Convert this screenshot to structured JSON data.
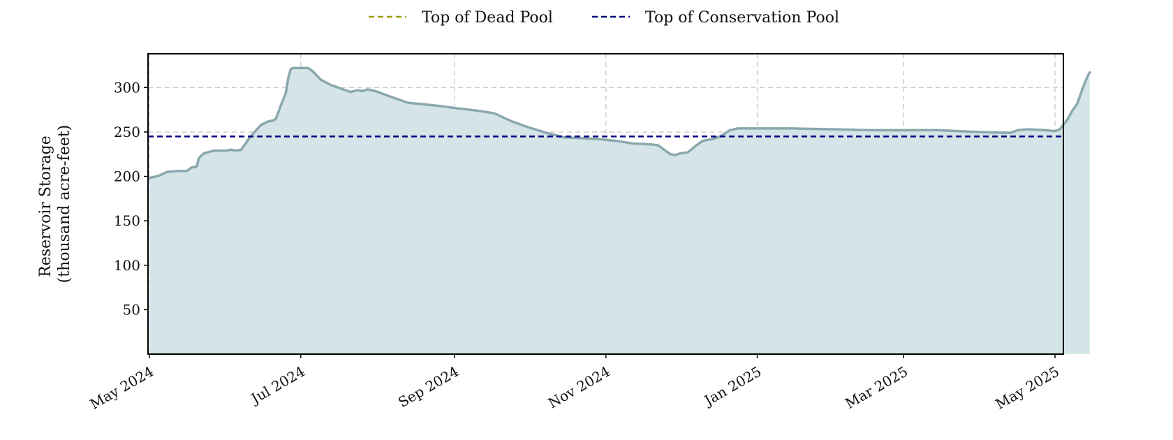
{
  "chart_data": {
    "type": "area",
    "ylabel_lines": [
      "Reservoir Storage",
      "(thousand acre-feet)"
    ],
    "x_range": [
      "2024-05-01",
      "2025-05-07"
    ],
    "x_ticks": [
      {
        "date": "2024-05-01",
        "label": "May 2024"
      },
      {
        "date": "2024-07-01",
        "label": "Jul 2024"
      },
      {
        "date": "2024-09-01",
        "label": "Sep 2024"
      },
      {
        "date": "2024-11-01",
        "label": "Nov 2024"
      },
      {
        "date": "2025-01-01",
        "label": "Jan 2025"
      },
      {
        "date": "2025-03-01",
        "label": "Mar 2025"
      },
      {
        "date": "2025-05-01",
        "label": "May 2025"
      }
    ],
    "ylim": [
      0,
      338
    ],
    "y_ticks": [
      50,
      100,
      150,
      200,
      250,
      300
    ],
    "grid": true,
    "legend_position": "top-center",
    "legend": [
      {
        "label": "Top of Dead Pool",
        "color": "#999900",
        "style": "dashed"
      },
      {
        "label": "Top of Conservation Pool",
        "color": "#000080",
        "style": "dashed"
      }
    ],
    "reference_lines": [
      {
        "name": "Top of Conservation Pool",
        "value": 245,
        "color": "#000080"
      }
    ],
    "series": [
      {
        "color": "#8aa8ad",
        "fill_color": "#d5e5e7",
        "points": [
          [
            "2024-05-01",
            198
          ],
          [
            "2024-05-05",
            201
          ],
          [
            "2024-05-08",
            205
          ],
          [
            "2024-05-12",
            206
          ],
          [
            "2024-05-16",
            206
          ],
          [
            "2024-05-18",
            210
          ],
          [
            "2024-05-20",
            211
          ],
          [
            "2024-05-21",
            221
          ],
          [
            "2024-05-23",
            226
          ],
          [
            "2024-05-27",
            229
          ],
          [
            "2024-06-01",
            229
          ],
          [
            "2024-06-03",
            230
          ],
          [
            "2024-06-05",
            229
          ],
          [
            "2024-06-07",
            230
          ],
          [
            "2024-06-10",
            242
          ],
          [
            "2024-06-13",
            252
          ],
          [
            "2024-06-15",
            258
          ],
          [
            "2024-06-18",
            262
          ],
          [
            "2024-06-20",
            263
          ],
          [
            "2024-06-21",
            265
          ],
          [
            "2024-06-23",
            280
          ],
          [
            "2024-06-25",
            294
          ],
          [
            "2024-06-26",
            311
          ],
          [
            "2024-06-27",
            321
          ],
          [
            "2024-06-28",
            322
          ],
          [
            "2024-07-04",
            322
          ],
          [
            "2024-07-06",
            318
          ],
          [
            "2024-07-09",
            309
          ],
          [
            "2024-07-13",
            303
          ],
          [
            "2024-07-17",
            299
          ],
          [
            "2024-07-21",
            295
          ],
          [
            "2024-07-24",
            297
          ],
          [
            "2024-07-26",
            296
          ],
          [
            "2024-07-28",
            298
          ],
          [
            "2024-07-31",
            296
          ],
          [
            "2024-08-06",
            290
          ],
          [
            "2024-08-13",
            283
          ],
          [
            "2024-08-20",
            281
          ],
          [
            "2024-08-27",
            279
          ],
          [
            "2024-09-01",
            277
          ],
          [
            "2024-09-10",
            274
          ],
          [
            "2024-09-17",
            271
          ],
          [
            "2024-09-24",
            262
          ],
          [
            "2024-10-01",
            255
          ],
          [
            "2024-10-08",
            249
          ],
          [
            "2024-10-15",
            244
          ],
          [
            "2024-10-29",
            242
          ],
          [
            "2024-11-05",
            240
          ],
          [
            "2024-11-12",
            237
          ],
          [
            "2024-11-19",
            236
          ],
          [
            "2024-11-22",
            235
          ],
          [
            "2024-11-25",
            229
          ],
          [
            "2024-11-27",
            225
          ],
          [
            "2024-11-29",
            224
          ],
          [
            "2024-12-01",
            226
          ],
          [
            "2024-12-04",
            227
          ],
          [
            "2024-12-07",
            234
          ],
          [
            "2024-12-10",
            240
          ],
          [
            "2024-12-14",
            242
          ],
          [
            "2024-12-17",
            245
          ],
          [
            "2024-12-21",
            252
          ],
          [
            "2024-12-24",
            254
          ],
          [
            "2025-01-15",
            254
          ],
          [
            "2025-02-01",
            253
          ],
          [
            "2025-02-15",
            252
          ],
          [
            "2025-03-01",
            252
          ],
          [
            "2025-03-15",
            252
          ],
          [
            "2025-03-31",
            250
          ],
          [
            "2025-04-13",
            249
          ],
          [
            "2025-04-16",
            252
          ],
          [
            "2025-04-20",
            253
          ],
          [
            "2025-04-27",
            252
          ],
          [
            "2025-05-01",
            251
          ],
          [
            "2025-05-03",
            253
          ],
          [
            "2025-05-06",
            264
          ],
          [
            "2025-05-08",
            274
          ],
          [
            "2025-05-10",
            282
          ],
          [
            "2025-05-12",
            298
          ],
          [
            "2025-05-14",
            312
          ],
          [
            "2025-05-15",
            317
          ]
        ]
      }
    ]
  }
}
